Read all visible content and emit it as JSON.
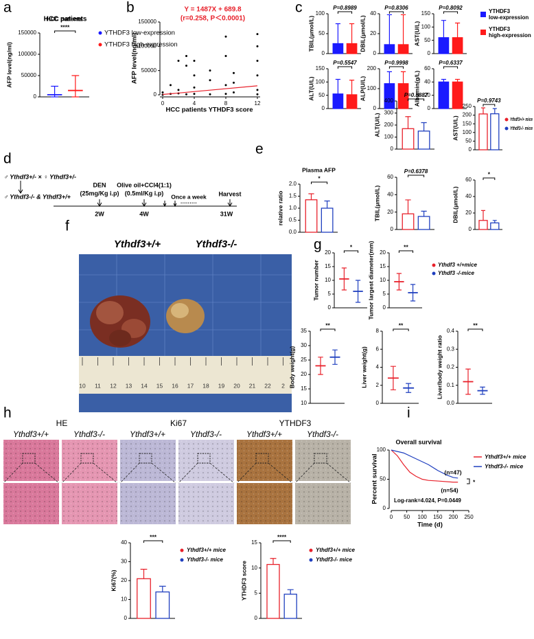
{
  "panels": {
    "a": {
      "letter": "a",
      "title": "HCC patients",
      "ylabel": "AFP level(ng/ml)",
      "ylim": [
        0,
        150000
      ],
      "yticks": [
        0,
        50000,
        100000,
        150000
      ],
      "values": [
        5000,
        15000
      ],
      "errors": [
        20000,
        35000
      ],
      "sig": "****",
      "legend": [
        "YTHDF3 low-expression",
        "YTHDF3 high-expression"
      ],
      "colors": [
        "#1a1aff",
        "#ff1a1a"
      ]
    },
    "b": {
      "letter": "b",
      "equation": "Y = 1487X + 689.8",
      "stats": "(r=0.258, P＜0.0001)",
      "fit": {
        "slope": 1487,
        "intercept": 689.8
      },
      "ylabel": "AFP level(ng/ml)",
      "xlabel": "HCC patients YTHDF3 score",
      "ylim": [
        0,
        150000
      ],
      "yticks": [
        0,
        50000,
        100000,
        150000
      ],
      "xlim": [
        0,
        12
      ],
      "xticks": [
        0,
        4,
        8,
        12
      ],
      "x": [
        0,
        0,
        1,
        1,
        2,
        2,
        2,
        3,
        3,
        3,
        4,
        4,
        4,
        4,
        6,
        6,
        6,
        8,
        8,
        8,
        8,
        9,
        9,
        9,
        12,
        12,
        12,
        12,
        12,
        12
      ],
      "y": [
        0,
        5000,
        2000,
        20000,
        3000,
        10000,
        70000,
        1000,
        60000,
        80000,
        2000,
        15000,
        40000,
        70000,
        1000,
        30000,
        50000,
        2000,
        20000,
        80000,
        120000,
        5000,
        25000,
        45000,
        1000,
        10000,
        40000,
        70000,
        100000,
        125000
      ]
    },
    "c": {
      "letter": "c",
      "colors": [
        "#1a1aff",
        "#ff1a1a"
      ],
      "legend": [
        [
          "YTHDF3",
          "low-expression"
        ],
        [
          "YTHDF3",
          "high-expression"
        ]
      ],
      "plots": [
        {
          "ylabel": "TBIL(μmol/L)",
          "p": "P=0.8989",
          "ylim": [
            0,
            100
          ],
          "yticks": [
            0,
            50,
            100
          ],
          "values": [
            25,
            25
          ],
          "errors": [
            50,
            50
          ]
        },
        {
          "ylabel": "DBIL(μmol/L)",
          "p": "P=0.8306",
          "ylim": [
            0,
            40
          ],
          "yticks": [
            0,
            20,
            40
          ],
          "values": [
            9,
            9
          ],
          "errors": [
            30,
            30
          ]
        },
        {
          "ylabel": "AST(U/L)",
          "p": "P=0.8092",
          "ylim": [
            0,
            150
          ],
          "yticks": [
            0,
            50,
            100,
            150
          ],
          "values": [
            60,
            60
          ],
          "errors": [
            65,
            55
          ]
        },
        {
          "ylabel": "ALT(U/L)",
          "p": "P=0.5547",
          "ylim": [
            0,
            150
          ],
          "yticks": [
            0,
            50,
            100,
            150
          ],
          "values": [
            55,
            52
          ],
          "errors": [
            55,
            55
          ]
        },
        {
          "ylabel": "ALP(U/L)",
          "p": "P=0.9998",
          "ylim": [
            0,
            200
          ],
          "yticks": [
            0,
            100,
            200
          ],
          "values": [
            125,
            125
          ],
          "errors": [
            60,
            60
          ]
        },
        {
          "ylabel": "Albumin(g/L)",
          "p": "P=0.6337",
          "ylim": [
            0,
            60
          ],
          "yticks": [
            0,
            20,
            40,
            60
          ],
          "values": [
            40,
            40
          ],
          "errors": [
            4,
            4
          ]
        }
      ]
    },
    "d": {
      "letter": "d",
      "cross": "♂ Ythdf3+/- × ♀ Ythdf3+/-",
      "offspring": "♂ Ythdf3-/- & Ythdf3+/+",
      "den": "DEN",
      "den_dose": "(25mg/Kg i.p)",
      "den_time": "2W",
      "ccl4": "Olive oil+CCl4(1:1)",
      "ccl4_dose": "(0.5ml/Kg i.p)",
      "ccl4_time": "4W",
      "weekly": "Once a week",
      "dots": "·········",
      "harvest": "Harvest",
      "harvest_time": "31W"
    },
    "e": {
      "letter": "e",
      "colors": [
        "#e8202a",
        "#1f3fbf"
      ],
      "legend": [
        "Ythdf3+/+ mice",
        "Ythdf3-/- mice"
      ],
      "plots": [
        {
          "title": "Plasma AFP",
          "ylabel": "relative ratio",
          "sig": "*",
          "ylim": [
            0,
            2
          ],
          "yticks": [
            {
              "value": 0,
              "label": "0.0"
            },
            0.5,
            {
              "value": 1,
              "label": "1.0"
            },
            1.5,
            {
              "value": 2,
              "label": "2.0"
            }
          ],
          "values": [
            1.35,
            1.0
          ],
          "errors": [
            0.25,
            0.3
          ]
        },
        {
          "ylabel": "ALT(U/L)",
          "p": "P=0.8887",
          "ylim": [
            0,
            400
          ],
          "yticks": [
            0,
            100,
            200,
            300,
            400
          ],
          "values": [
            170,
            150
          ],
          "errors": [
            100,
            70
          ]
        },
        {
          "ylabel": "AST(U/L)",
          "p": "P=0.9743",
          "ylim": [
            0,
            250
          ],
          "yticks": [
            0,
            50,
            100,
            150,
            200,
            250
          ],
          "values": [
            207,
            208
          ],
          "errors": [
            35,
            30
          ]
        },
        {
          "ylabel": "TBIL(μmol/L)",
          "p": "P=0.6378",
          "ylim": [
            0,
            60
          ],
          "yticks": [
            0,
            20,
            40,
            60
          ],
          "values": [
            18,
            15
          ],
          "errors": [
            16,
            6
          ]
        },
        {
          "ylabel": "DBIL(μmol/L)",
          "sig": "*",
          "ylim": [
            0,
            60
          ],
          "yticks": [
            0,
            20,
            40,
            60
          ],
          "values": [
            11,
            8
          ],
          "errors": [
            12,
            3
          ]
        }
      ]
    },
    "f": {
      "letter": "f",
      "labels": [
        "Ythdf3+/+",
        "Ythdf3-/-"
      ],
      "ruler": [
        "10",
        "11",
        "12",
        "13",
        "14",
        "15",
        "16",
        "17",
        "18",
        "19",
        "20",
        "21",
        "22",
        "2"
      ]
    },
    "g": {
      "letter": "g",
      "colors": [
        "#e8202a",
        "#1f3fbf"
      ],
      "legend": [
        "Ythdf3 +/+mice",
        "Ythdf3 -/-mice"
      ],
      "plots": [
        {
          "ylabel": "Tumor number",
          "sig": "*",
          "ylim": [
            0,
            20
          ],
          "yticks": [
            0,
            5,
            10,
            15,
            20
          ],
          "values": [
            10.5,
            6
          ],
          "errors": [
            4,
            4
          ]
        },
        {
          "ylabel": "Tumor largest diameter(mm)",
          "sig": "**",
          "ylim": [
            0,
            20
          ],
          "yticks": [
            0,
            5,
            10,
            15,
            20
          ],
          "values": [
            9.5,
            5.5
          ],
          "errors": [
            3,
            3
          ]
        },
        {
          "ylabel": "Body weight(g)",
          "sig": "**",
          "ylim": [
            10,
            35
          ],
          "yticks": [
            10,
            15,
            20,
            25,
            30,
            35
          ],
          "values": [
            23,
            26
          ],
          "errors": [
            3,
            2.5
          ]
        },
        {
          "ylabel": "Liver weight(g)",
          "sig": "**",
          "ylim": [
            0,
            8
          ],
          "yticks": [
            0,
            2,
            4,
            6,
            8
          ],
          "values": [
            2.8,
            1.7
          ],
          "errors": [
            1.3,
            0.5
          ]
        },
        {
          "ylabel": "Liver/body weight ratio",
          "sig": "**",
          "ylim": [
            0,
            0.4
          ],
          "yticks": [
            {
              "value": 0,
              "label": "0.0"
            },
            0.1,
            0.2,
            0.3,
            0.4
          ],
          "values": [
            0.12,
            0.07
          ],
          "errors": [
            0.07,
            0.02
          ]
        }
      ]
    },
    "h": {
      "letter": "h",
      "stains": [
        "HE",
        "Ki67",
        "YTHDF3"
      ],
      "genotypes": [
        "Ythdf3+/+",
        "Ythdf3-/-"
      ],
      "colors": [
        "#e8202a",
        "#1f3fbf"
      ],
      "legend": [
        "Ythdf3+/+ mice",
        "Ythdf3-/- mice"
      ],
      "plots": [
        {
          "ylabel": "Ki67(%)",
          "sig": "***",
          "ylim": [
            0,
            40
          ],
          "yticks": [
            0,
            10,
            20,
            30,
            40
          ],
          "values": [
            21,
            14
          ],
          "errors": [
            5,
            3
          ]
        },
        {
          "ylabel": "YTHDF3 score",
          "sig": "****",
          "ylim": [
            0,
            15
          ],
          "yticks": [
            0,
            5,
            10,
            15
          ],
          "values": [
            10.7,
            4.8
          ],
          "errors": [
            1.2,
            0.9
          ]
        }
      ]
    },
    "i": {
      "letter": "i",
      "title": "Overall survival",
      "ylabel": "Percent survival",
      "xlabel": "Time (d)",
      "ylim": [
        0,
        100
      ],
      "yticks": [
        0,
        50,
        100
      ],
      "xlim": [
        0,
        250
      ],
      "xticks": [
        0,
        50,
        100,
        150,
        200,
        250
      ],
      "n_blue": "(n=47)",
      "n_red": "(n=54)",
      "sig": "*",
      "stat": "Log-rank=4.024, P=0.0449",
      "series": [
        {
          "name": "Ythdf3+/+ mice",
          "color": "#e8202a",
          "x": [
            0,
            20,
            40,
            60,
            80,
            100,
            120,
            150,
            200,
            215
          ],
          "y": [
            100,
            90,
            75,
            62,
            55,
            50,
            48,
            47,
            45,
            45
          ]
        },
        {
          "name": "Ythdf3-/- mice",
          "color": "#1f3fbf",
          "x": [
            0,
            40,
            80,
            120,
            150,
            180,
            200,
            215
          ],
          "y": [
            100,
            95,
            85,
            75,
            65,
            57,
            53,
            52
          ]
        }
      ]
    }
  }
}
